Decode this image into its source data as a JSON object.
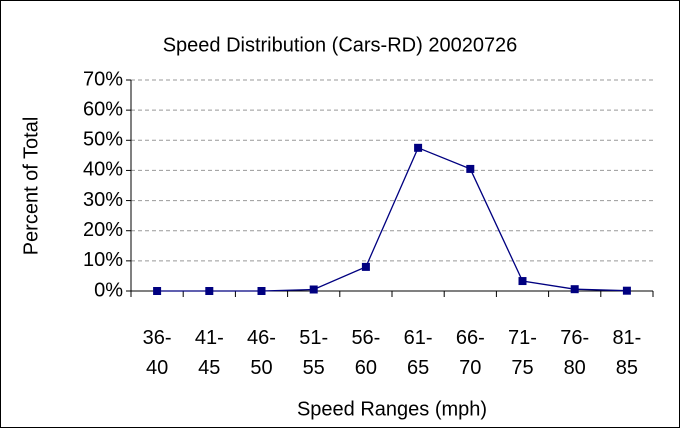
{
  "chart_data": {
    "type": "line",
    "title": "Speed Distribution (Cars-RD) 20020726",
    "x_label": "Speed Ranges (mph)",
    "y_label": "Percent of Total",
    "categories": [
      "36-40",
      "41-45",
      "46-50",
      "51-55",
      "56-60",
      "61-65",
      "66-70",
      "71-75",
      "76-80",
      "81-85"
    ],
    "series": [
      {
        "name": "Percent of Total",
        "color": "#000080",
        "values": [
          0,
          0,
          0,
          0.5,
          8,
          47.5,
          40.5,
          3.3,
          0.6,
          0.1
        ]
      }
    ],
    "ylim": [
      0,
      70
    ],
    "yticks": [
      {
        "value": 0,
        "label": "0%"
      },
      {
        "value": 10,
        "label": "10%"
      },
      {
        "value": 20,
        "label": "20%"
      },
      {
        "value": 30,
        "label": "30%"
      },
      {
        "value": 40,
        "label": "40%"
      },
      {
        "value": 50,
        "label": "50%"
      },
      {
        "value": 60,
        "label": "60%"
      },
      {
        "value": 70,
        "label": "70%"
      }
    ],
    "grid": true
  }
}
